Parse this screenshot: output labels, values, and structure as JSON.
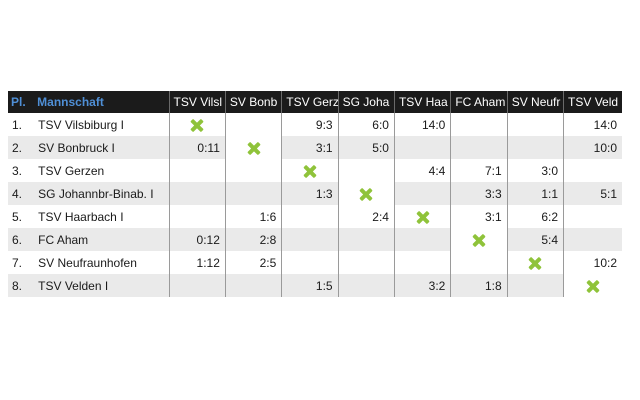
{
  "table": {
    "headers": {
      "place": "Pl.",
      "team": "Mannschaft",
      "opponents": [
        "TSV Vilsl",
        "SV Bonb",
        "TSV Gerz",
        "SG Joha",
        "TSV Haa",
        "FC Aham",
        "SV Neufr",
        "TSV Veld"
      ]
    },
    "rows": [
      {
        "place": "1.",
        "team": "TSV Vilsbiburg I",
        "results": [
          "",
          "",
          "9:3",
          "6:0",
          "14:0",
          "",
          "",
          "14:0"
        ]
      },
      {
        "place": "2.",
        "team": "SV Bonbruck I",
        "results": [
          "0:11",
          "",
          "3:1",
          "5:0",
          "",
          "",
          "",
          "10:0"
        ]
      },
      {
        "place": "3.",
        "team": "TSV Gerzen",
        "results": [
          "",
          "",
          "",
          "",
          "4:4",
          "7:1",
          "3:0",
          ""
        ]
      },
      {
        "place": "4.",
        "team": "SG Johannbr-Binab. I",
        "results": [
          "",
          "",
          "1:3",
          "",
          "",
          "3:3",
          "1:1",
          "5:1"
        ]
      },
      {
        "place": "5.",
        "team": "TSV Haarbach I",
        "results": [
          "",
          "1:6",
          "",
          "2:4",
          "",
          "3:1",
          "6:2",
          ""
        ]
      },
      {
        "place": "6.",
        "team": "FC Aham",
        "results": [
          "0:12",
          "2:8",
          "",
          "",
          "",
          "",
          "5:4",
          ""
        ]
      },
      {
        "place": "7.",
        "team": "SV Neufraunhofen",
        "results": [
          "1:12",
          "2:5",
          "",
          "",
          "",
          "",
          "",
          "10:2"
        ]
      },
      {
        "place": "8.",
        "team": "TSV Velden I",
        "results": [
          "",
          "",
          "1:5",
          "",
          "3:2",
          "1:8",
          "",
          ""
        ]
      }
    ],
    "self_icon": "cross-icon",
    "colors": {
      "header_bg": "#1b1b1b",
      "header_accent": "#4f8fd6",
      "cross": "#8fc33a",
      "row_alt": "#eaeaea"
    }
  }
}
